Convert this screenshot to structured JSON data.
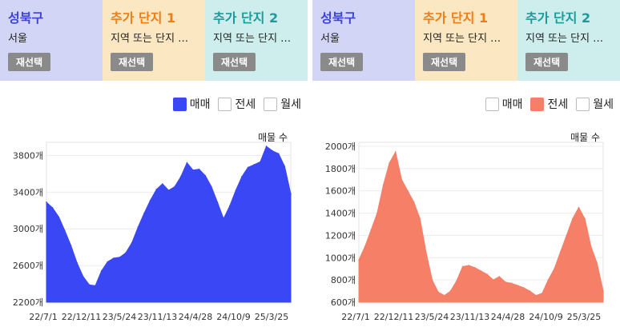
{
  "panels": [
    {
      "tabs": [
        {
          "title": "성북구",
          "subtitle": "서울",
          "button": "재선택",
          "bg": "#d3d5f7",
          "color": "#3d44d8"
        },
        {
          "title": "추가 단지 1",
          "subtitle": "지역 또는 단지 …",
          "button": "재선택",
          "bg": "#fbe8c2",
          "color": "#ef7d17"
        },
        {
          "title": "추가 단지 2",
          "subtitle": "지역 또는 단지 …",
          "button": "재선택",
          "bg": "#cdeeed",
          "color": "#1b9b9a"
        }
      ],
      "legend": [
        {
          "label": "매매",
          "checked": true,
          "color": "#3a47f5"
        },
        {
          "label": "전세",
          "checked": false,
          "color": "#f57f67"
        },
        {
          "label": "월세",
          "checked": false,
          "color": "#999999"
        }
      ]
    },
    {
      "tabs": [
        {
          "title": "성북구",
          "subtitle": "서울",
          "button": "재선택",
          "bg": "#d3d5f7",
          "color": "#3d44d8"
        },
        {
          "title": "추가 단지 1",
          "subtitle": "지역 또는 단지 …",
          "button": "재선택",
          "bg": "#fbe8c2",
          "color": "#ef7d17"
        },
        {
          "title": "추가 단지 2",
          "subtitle": "지역 또는 단지 …",
          "button": "재선택",
          "bg": "#cdeeed",
          "color": "#1b9b9a"
        }
      ],
      "legend": [
        {
          "label": "매매",
          "checked": false,
          "color": "#3a47f5"
        },
        {
          "label": "전세",
          "checked": true,
          "color": "#f57f67"
        },
        {
          "label": "월세",
          "checked": false,
          "color": "#999999"
        }
      ]
    }
  ],
  "chart_data": [
    {
      "type": "area",
      "annotation": "매물 수",
      "color": "#3a47f5",
      "ylim": [
        2200,
        3900
      ],
      "yticks": [
        2200,
        2600,
        3000,
        3400,
        3800
      ],
      "ytick_labels": [
        "2200개",
        "2600개",
        "3000개",
        "3400개",
        "3800개"
      ],
      "xtick_labels": [
        "22/7/1",
        "22/12/11",
        "23/5/24",
        "23/11/13",
        "24/4/28",
        "24/10/9",
        "25/3/25"
      ],
      "x": [
        "22/7/1",
        "22/8/1",
        "22/9/1",
        "22/10/1",
        "22/11/1",
        "22/12/1",
        "22/12/11",
        "23/1/15",
        "23/2/15",
        "23/3/15",
        "23/4/15",
        "23/5/24",
        "23/6/20",
        "23/7/20",
        "23/8/20",
        "23/9/20",
        "23/10/20",
        "23/11/13",
        "23/12/15",
        "24/1/15",
        "24/2/15",
        "24/3/15",
        "24/4/1",
        "24/4/28",
        "24/5/30",
        "24/6/30",
        "24/7/30",
        "24/8/30",
        "24/9/15",
        "24/10/9",
        "24/11/10",
        "24/12/10",
        "25/1/10",
        "25/2/10",
        "25/2/25",
        "25/3/10",
        "25/3/25",
        "25/4/10",
        "25/4/25",
        "25/5/10",
        "25/5/20"
      ],
      "values": [
        3290,
        3230,
        3130,
        2980,
        2820,
        2630,
        2480,
        2390,
        2380,
        2540,
        2640,
        2680,
        2690,
        2740,
        2850,
        3020,
        3170,
        3310,
        3430,
        3490,
        3420,
        3460,
        3570,
        3720,
        3640,
        3650,
        3580,
        3460,
        3290,
        3110,
        3250,
        3420,
        3570,
        3670,
        3700,
        3730,
        3900,
        3850,
        3820,
        3680,
        3380
      ]
    },
    {
      "type": "area",
      "annotation": "매물 수",
      "color": "#f57f67",
      "ylim": [
        600,
        2000
      ],
      "yticks": [
        600,
        800,
        1000,
        1200,
        1400,
        1600,
        1800,
        2000
      ],
      "ytick_labels": [
        "600개",
        "800개",
        "1000개",
        "1200개",
        "1400개",
        "1600개",
        "1800개",
        "2000개"
      ],
      "xtick_labels": [
        "22/7/1",
        "22/12/11",
        "23/5/24",
        "23/11/13",
        "24/4/28",
        "24/10/9",
        "25/3/25"
      ],
      "x": [
        "22/7/1",
        "22/8/1",
        "22/9/1",
        "22/10/1",
        "22/11/1",
        "22/12/1",
        "22/12/11",
        "23/1/15",
        "23/2/15",
        "23/3/15",
        "23/4/15",
        "23/5/24",
        "23/6/20",
        "23/7/20",
        "23/8/20",
        "23/9/20",
        "23/10/20",
        "23/11/13",
        "23/12/15",
        "24/1/15",
        "24/2/15",
        "24/3/15",
        "24/4/1",
        "24/4/28",
        "24/5/30",
        "24/6/30",
        "24/7/30",
        "24/8/30",
        "24/9/15",
        "24/10/9",
        "24/11/10",
        "24/12/10",
        "25/1/10",
        "25/2/10",
        "25/2/25",
        "25/3/10",
        "25/3/25",
        "25/4/10",
        "25/4/25",
        "25/5/10",
        "25/5/20"
      ],
      "values": [
        980,
        1100,
        1250,
        1400,
        1650,
        1850,
        1950,
        1700,
        1600,
        1500,
        1350,
        1050,
        800,
        690,
        660,
        700,
        790,
        920,
        930,
        910,
        880,
        850,
        800,
        830,
        780,
        770,
        750,
        730,
        700,
        660,
        680,
        800,
        900,
        1050,
        1200,
        1350,
        1450,
        1350,
        1100,
        950,
        700
      ]
    }
  ]
}
